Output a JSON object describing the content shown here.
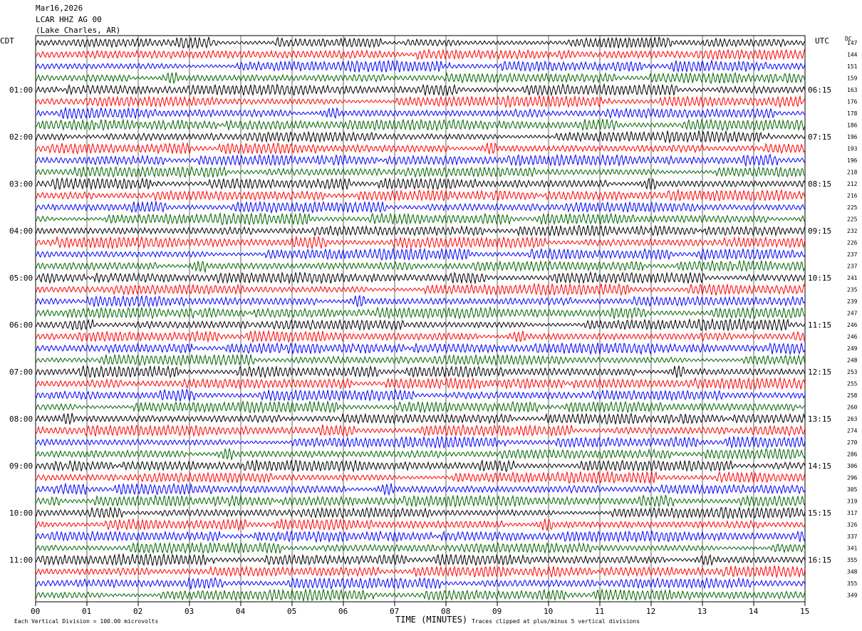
{
  "header": {
    "date": "Mar16,2026",
    "station": "LCAR HHZ AG 00",
    "location": "(Lake Charles, AR)"
  },
  "chart_data": {
    "type": "line",
    "subtype": "helicorder",
    "left_timezone": "CDT",
    "right_timezone": "UTC",
    "right_column_label": "DC",
    "left_hour_labels": [
      "01:00",
      "02:00",
      "03:00",
      "04:00",
      "05:00",
      "06:00",
      "07:00",
      "08:00",
      "09:00",
      "10:00",
      "11:00"
    ],
    "right_hour_labels": [
      "06:15",
      "07:15",
      "08:15",
      "09:15",
      "10:15",
      "11:15",
      "12:15",
      "13:15",
      "14:15",
      "15:15",
      "16:15"
    ],
    "x_tick_labels": [
      "00",
      "01",
      "02",
      "03",
      "04",
      "05",
      "06",
      "07",
      "08",
      "09",
      "10",
      "11",
      "12",
      "13",
      "14",
      "15"
    ],
    "xlabel": "TIME (MINUTES)",
    "xlim": [
      0,
      15
    ],
    "traces_per_hour": 4,
    "trace_colors": [
      "#000000",
      "#ff0000",
      "#0000ff",
      "#006400"
    ],
    "dc_offsets": [
      147,
      144,
      151,
      159,
      163,
      176,
      178,
      186,
      196,
      193,
      196,
      218,
      212,
      216,
      225,
      225,
      232,
      226,
      237,
      237,
      241,
      235,
      239,
      247,
      246,
      246,
      249,
      248,
      253,
      255,
      258,
      260,
      263,
      274,
      270,
      286,
      306,
      296,
      305,
      319,
      317,
      326,
      337,
      341,
      355,
      348,
      355,
      349
    ],
    "grid": true
  },
  "footer": {
    "scale": "Each Vertical Division =  100.00 microvolts",
    "clip": "Traces clipped at plus/minus 5 vertical divisions"
  }
}
